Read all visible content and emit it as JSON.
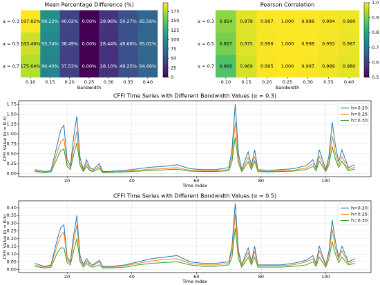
{
  "chart_data": [
    {
      "type": "heatmap",
      "title": "Mean Percentage Difference (%)",
      "x_label": "Bandwidth",
      "categories": [
        "0.10",
        "0.15",
        "0.20",
        "0.25",
        "0.30",
        "0.35",
        "0.40"
      ],
      "rows": [
        "α = 0.3",
        "α = 0.5",
        "α = 0.7"
      ],
      "values": [
        [
          197.82,
          99.22,
          40.02,
          0.0,
          28.96,
          50.27,
          65.56
        ],
        [
          183.46,
          93.74,
          38.49,
          0.0,
          28.44,
          49.66,
          65.02
        ],
        [
          175.64,
          90.4,
          37.53,
          0.0,
          28.1,
          49.25,
          64.66
        ]
      ],
      "value_labels": [
        [
          "197.82%",
          "99.22%",
          "40.02%",
          "0.00%",
          "28.96%",
          "50.27%",
          "65.56%"
        ],
        [
          "183.46%",
          "93.74%",
          "38.49%",
          "0.00%",
          "28.44%",
          "49.66%",
          "65.02%"
        ],
        [
          "175.64%",
          "90.40%",
          "37.53%",
          "0.00%",
          "28.10%",
          "49.25%",
          "64.66%"
        ]
      ],
      "colormap": "viridis",
      "clim": [
        0,
        197.82
      ],
      "cticks": [
        0,
        25,
        50,
        75,
        100,
        125,
        150,
        175
      ]
    },
    {
      "type": "heatmap",
      "title": "Pearson Correlation",
      "x_label": "Bandwidth",
      "categories": [
        "0.10",
        "0.15",
        "0.20",
        "0.25",
        "0.30",
        "0.35",
        "0.40"
      ],
      "rows": [
        "α = 0.3",
        "α = 0.5",
        "α = 0.7"
      ],
      "values": [
        [
          0.914,
          0.978,
          0.997,
          1.0,
          0.998,
          0.994,
          0.99
        ],
        [
          0.897,
          0.975,
          0.996,
          1.0,
          0.998,
          0.993,
          0.987
        ],
        [
          0.86,
          0.969,
          0.995,
          1.0,
          0.997,
          0.989,
          0.98
        ]
      ],
      "value_labels": [
        [
          "0.914",
          "0.978",
          "0.997",
          "1.000",
          "0.998",
          "0.994",
          "0.990"
        ],
        [
          "0.897",
          "0.975",
          "0.996",
          "1.000",
          "0.998",
          "0.993",
          "0.987"
        ],
        [
          "0.860",
          "0.969",
          "0.995",
          "1.000",
          "0.997",
          "0.989",
          "0.980"
        ]
      ],
      "colormap": "viridis",
      "clim": [
        0.5,
        1.0
      ],
      "cticks": [
        0.5,
        0.6,
        0.7,
        0.8,
        0.9,
        {
          "value": 1.0,
          "label": "1.0"
        }
      ]
    },
    {
      "type": "line",
      "title": "CFFI Time Series with Different Bandwidth Values (α = 0.3)",
      "x_label": "Time Index",
      "y_label": "CFFI Value (α = 0.3)",
      "x": [
        10,
        13,
        15,
        17,
        18,
        19,
        20,
        21,
        22,
        23,
        24,
        25,
        26,
        27,
        28,
        30,
        31,
        32,
        34,
        38,
        42,
        46,
        50,
        54,
        58,
        62,
        66,
        70,
        71,
        72,
        73,
        74,
        76,
        77,
        78,
        79,
        82,
        86,
        90,
        94,
        96,
        97,
        98,
        100,
        101,
        102,
        103,
        104,
        105,
        107,
        109
      ],
      "series": [
        {
          "name": "h=0.20",
          "color": "#1f77b4",
          "values": [
            0.1,
            0.05,
            0.07,
            0.75,
            1.1,
            1.22,
            0.35,
            0.2,
            0.9,
            1.45,
            0.4,
            0.1,
            0.35,
            0.15,
            0.1,
            0.25,
            0.05,
            0.05,
            0.06,
            0.08,
            0.12,
            0.16,
            0.18,
            0.22,
            0.12,
            0.1,
            0.1,
            0.15,
            0.6,
            1.75,
            0.5,
            0.1,
            0.55,
            0.2,
            0.6,
            0.1,
            0.08,
            0.1,
            0.12,
            0.2,
            0.35,
            0.15,
            0.6,
            0.1,
            0.45,
            1.3,
            0.7,
            0.3,
            0.6,
            0.15,
            0.22
          ]
        },
        {
          "name": "h=0.25",
          "color": "#ff7f0e",
          "values": [
            0.07,
            0.03,
            0.05,
            0.55,
            0.8,
            0.88,
            0.25,
            0.14,
            0.65,
            1.07,
            0.28,
            0.07,
            0.25,
            0.1,
            0.07,
            0.18,
            0.03,
            0.03,
            0.04,
            0.06,
            0.08,
            0.11,
            0.12,
            0.15,
            0.08,
            0.07,
            0.07,
            0.1,
            0.43,
            1.3,
            0.36,
            0.07,
            0.4,
            0.14,
            0.43,
            0.07,
            0.05,
            0.07,
            0.08,
            0.14,
            0.25,
            0.1,
            0.43,
            0.07,
            0.32,
            0.95,
            0.5,
            0.21,
            0.43,
            0.1,
            0.16
          ]
        },
        {
          "name": "h=0.30",
          "color": "#2ca02c",
          "values": [
            0.05,
            0.02,
            0.04,
            0.4,
            0.58,
            0.62,
            0.18,
            0.1,
            0.47,
            0.78,
            0.2,
            0.05,
            0.18,
            0.07,
            0.05,
            0.13,
            0.02,
            0.02,
            0.03,
            0.04,
            0.06,
            0.08,
            0.09,
            0.11,
            0.06,
            0.05,
            0.05,
            0.07,
            0.3,
            0.92,
            0.26,
            0.05,
            0.29,
            0.1,
            0.31,
            0.05,
            0.04,
            0.05,
            0.06,
            0.1,
            0.18,
            0.07,
            0.31,
            0.05,
            0.23,
            0.68,
            0.36,
            0.15,
            0.31,
            0.07,
            0.11
          ]
        }
      ],
      "xlim": [
        5,
        114
      ],
      "xticks": [
        20,
        40,
        60,
        80,
        100
      ],
      "ylim": [
        -0.08,
        1.84
      ],
      "yticks": [
        {
          "value": 0,
          "label": "0.00"
        },
        {
          "value": 0.25,
          "label": "0.25"
        },
        {
          "value": 0.5,
          "label": "0.50"
        },
        {
          "value": 0.75,
          "label": "0.75"
        },
        {
          "value": 1,
          "label": "1.00"
        },
        {
          "value": 1.25,
          "label": "1.25"
        },
        {
          "value": 1.5,
          "label": "1.50"
        },
        {
          "value": 1.75,
          "label": "1.75"
        }
      ],
      "grid": true,
      "legend": "upper right"
    },
    {
      "type": "line",
      "title": "CFFI Time Series with Different Bandwidth Values (α = 0.5)",
      "x_label": "Time Index",
      "y_label": "CFFI Value (α = 0.5)",
      "x": [
        10,
        13,
        15,
        17,
        18,
        19,
        20,
        21,
        22,
        23,
        24,
        25,
        26,
        27,
        28,
        30,
        31,
        32,
        34,
        38,
        42,
        46,
        50,
        54,
        58,
        62,
        66,
        70,
        71,
        72,
        73,
        74,
        76,
        77,
        78,
        79,
        82,
        86,
        90,
        94,
        96,
        97,
        98,
        100,
        101,
        102,
        103,
        104,
        105,
        107,
        109
      ],
      "series": [
        {
          "name": "h=0.20",
          "color": "#1f77b4",
          "values": [
            0.04,
            0.02,
            0.03,
            0.2,
            0.27,
            0.29,
            0.08,
            0.05,
            0.22,
            0.35,
            0.09,
            0.03,
            0.07,
            0.04,
            0.03,
            0.06,
            0.02,
            0.02,
            0.02,
            0.03,
            0.05,
            0.07,
            0.08,
            0.09,
            0.05,
            0.04,
            0.04,
            0.05,
            0.15,
            0.43,
            0.12,
            0.03,
            0.14,
            0.05,
            0.15,
            0.03,
            0.03,
            0.03,
            0.04,
            0.06,
            0.09,
            0.04,
            0.15,
            0.03,
            0.12,
            0.32,
            0.18,
            0.08,
            0.15,
            0.05,
            0.07
          ]
        },
        {
          "name": "h=0.25",
          "color": "#ff7f0e",
          "values": [
            0.03,
            0.015,
            0.025,
            0.16,
            0.22,
            0.24,
            0.065,
            0.04,
            0.18,
            0.29,
            0.07,
            0.025,
            0.055,
            0.03,
            0.025,
            0.05,
            0.015,
            0.015,
            0.015,
            0.025,
            0.04,
            0.055,
            0.065,
            0.07,
            0.04,
            0.03,
            0.03,
            0.04,
            0.12,
            0.36,
            0.1,
            0.025,
            0.11,
            0.04,
            0.12,
            0.025,
            0.025,
            0.025,
            0.03,
            0.05,
            0.07,
            0.03,
            0.12,
            0.025,
            0.1,
            0.26,
            0.14,
            0.065,
            0.12,
            0.04,
            0.055
          ]
        },
        {
          "name": "h=0.30",
          "color": "#2ca02c",
          "values": [
            0.02,
            0.01,
            0.015,
            0.11,
            0.14,
            0.14,
            0.045,
            0.03,
            0.12,
            0.2,
            0.05,
            0.015,
            0.04,
            0.02,
            0.015,
            0.03,
            0.01,
            0.01,
            0.01,
            0.015,
            0.03,
            0.04,
            0.045,
            0.05,
            0.03,
            0.02,
            0.02,
            0.03,
            0.08,
            0.27,
            0.07,
            0.015,
            0.08,
            0.03,
            0.08,
            0.015,
            0.015,
            0.015,
            0.02,
            0.03,
            0.05,
            0.02,
            0.08,
            0.015,
            0.07,
            0.18,
            0.1,
            0.045,
            0.08,
            0.03,
            0.04
          ]
        }
      ],
      "xlim": [
        5,
        114
      ],
      "xticks": [
        20,
        40,
        60,
        80,
        100
      ],
      "ylim": [
        -0.02,
        0.445
      ],
      "yticks": [
        {
          "value": 0,
          "label": "0.00"
        },
        {
          "value": 0.05,
          "label": "0.05"
        },
        {
          "value": 0.1,
          "label": "0.10"
        },
        {
          "value": 0.15,
          "label": "0.15"
        },
        {
          "value": 0.2,
          "label": "0.20"
        },
        {
          "value": 0.25,
          "label": "0.25"
        },
        {
          "value": 0.3,
          "label": "0.30"
        },
        {
          "value": 0.35,
          "label": "0.35"
        },
        {
          "value": 0.4,
          "label": "0.40"
        }
      ],
      "grid": true,
      "legend": "upper right"
    }
  ]
}
